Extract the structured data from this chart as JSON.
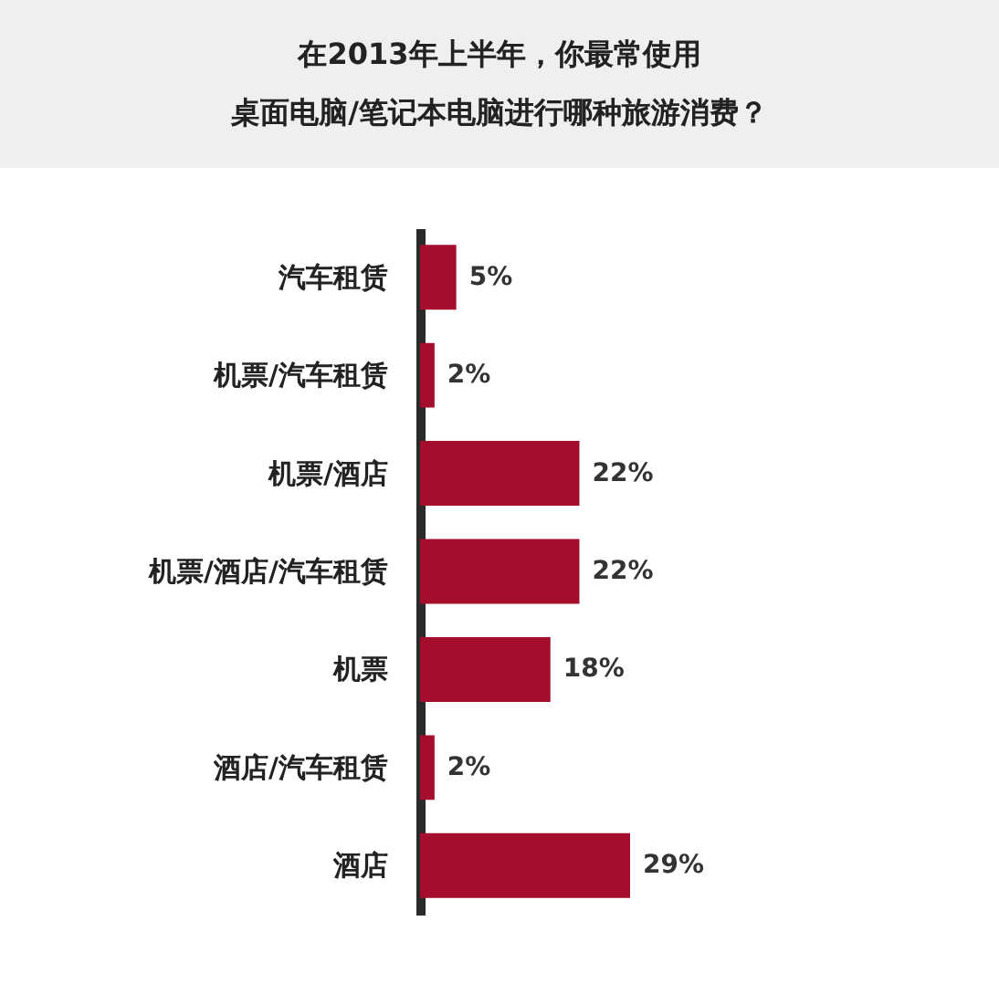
{
  "chart_data": {
    "type": "bar",
    "orientation": "horizontal",
    "title": "在2013年上半年，你最常使用",
    "subtitle": "桌面电脑/笔记本电脑进行哪种旅游消费？",
    "categories": [
      "汽车租赁",
      "机票/汽车租赁",
      "机票/酒店",
      "机票/酒店/汽车租赁",
      "机票",
      "酒店/汽车租赁",
      "酒店"
    ],
    "values": [
      5,
      2,
      22,
      22,
      18,
      2,
      29
    ],
    "value_labels": [
      "5%",
      "2%",
      "22%",
      "22%",
      "18%",
      "2%",
      "29%"
    ],
    "color": "#a50d2c"
  }
}
